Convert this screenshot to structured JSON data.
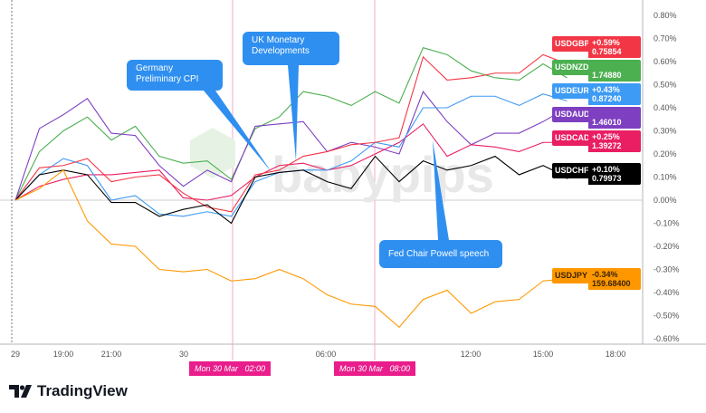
{
  "chart_data": {
    "type": "line",
    "x": [
      "Mar 29 17:00",
      "Mar 29 18:00",
      "Mar 29 19:00",
      "Mar 29 20:00",
      "Mar 29 21:00",
      "Mar 29 22:00",
      "Mar 29 23:00",
      "Mar 30 00:00",
      "Mar 30 01:00",
      "Mar 30 02:00",
      "Mar 30 03:00",
      "Mar 30 04:00",
      "Mar 30 05:00",
      "Mar 30 06:00",
      "Mar 30 07:00",
      "Mar 30 08:00",
      "Mar 30 09:00",
      "Mar 30 10:00",
      "Mar 30 11:00",
      "Mar 30 12:00",
      "Mar 30 13:00",
      "Mar 30 14:00",
      "Mar 30 15:00",
      "Mar 30 16:00"
    ],
    "ylim": [
      -0.62,
      0.84
    ],
    "grid": false,
    "yticks": [
      "0.80%",
      "0.70%",
      "0.60%",
      "0.50%",
      "0.40%",
      "0.30%",
      "0.20%",
      "0.10%",
      "0.00%",
      "-0.10%",
      "-0.20%",
      "-0.30%",
      "-0.40%",
      "-0.50%",
      "-0.60%"
    ],
    "ytick_values": [
      0.8,
      0.7,
      0.6,
      0.5,
      0.4,
      0.3,
      0.2,
      0.1,
      0,
      -0.1,
      -0.2,
      -0.3,
      -0.4,
      -0.5,
      -0.6
    ],
    "xticks": [
      "29",
      "19:00",
      "21:00",
      "30",
      "06:00",
      "12:00",
      "15:00",
      "18:00"
    ],
    "highlighted_x": [
      "Mon 30 Mar   02:00",
      "Mon 30 Mar   08:00"
    ],
    "series": [
      {
        "name": "USDNZD",
        "color": "#4caf50",
        "change": "",
        "value": "1.74880",
        "values": [
          0,
          0.21,
          0.3,
          0.36,
          0.26,
          0.32,
          0.19,
          0.16,
          0.17,
          0.09,
          0.31,
          0.36,
          0.47,
          0.45,
          0.41,
          0.47,
          0.42,
          0.66,
          0.63,
          0.56,
          0.53,
          0.52,
          0.59,
          0.53
        ]
      },
      {
        "name": "USDAUD",
        "color": "#7e3fc1",
        "change": "",
        "value": "1.46010",
        "values": [
          0,
          0.31,
          0.37,
          0.44,
          0.29,
          0.28,
          0.15,
          0.06,
          0.13,
          0.08,
          0.32,
          0.33,
          0.34,
          0.21,
          0.25,
          0.23,
          0.2,
          0.47,
          0.34,
          0.24,
          0.29,
          0.29,
          0.34,
          0.4
        ]
      },
      {
        "name": "USDCAD",
        "color": "#e91e63",
        "change": "+0.25%",
        "value": "1.39272",
        "values": [
          0,
          0.06,
          0.09,
          0.11,
          0.11,
          0.12,
          0.13,
          0.01,
          0,
          0.02,
          0.1,
          0.15,
          0.16,
          0.13,
          0.15,
          0.2,
          0.25,
          0.33,
          0.19,
          0.24,
          0.23,
          0.21,
          0.25,
          0.25
        ]
      },
      {
        "name": "USDEUR",
        "color": "#3d9bf5",
        "change": "+0.43%",
        "value": "0.87240",
        "values": [
          0,
          0.11,
          0.18,
          0.15,
          0,
          0.02,
          -0.06,
          -0.07,
          -0.05,
          -0.07,
          0.08,
          0.12,
          0.13,
          0.13,
          0.17,
          0.25,
          0.23,
          0.4,
          0.4,
          0.45,
          0.45,
          0.41,
          0.46,
          0.43
        ]
      },
      {
        "name": "USDGBP",
        "color": "#f23645",
        "change": "+0.59%",
        "value": "0.75854",
        "values": [
          0,
          0.14,
          0.15,
          0.18,
          0.08,
          0.1,
          0.11,
          0.03,
          -0.03,
          -0.05,
          0.11,
          0.13,
          0.19,
          0.21,
          0.24,
          0.25,
          0.27,
          0.62,
          0.52,
          0.53,
          0.55,
          0.55,
          0.63,
          0.59
        ]
      },
      {
        "name": "USDCHF",
        "color": "#000000",
        "change": "+0.10%",
        "value": "0.79973",
        "values": [
          0,
          0.11,
          0.13,
          0.11,
          -0.01,
          -0.01,
          -0.07,
          -0.04,
          -0.02,
          -0.1,
          0.1,
          0.12,
          0.13,
          0.08,
          0.05,
          0.19,
          0.08,
          0.17,
          0.13,
          0.15,
          0.19,
          0.11,
          0.15,
          0.1
        ]
      },
      {
        "name": "USDJPY",
        "color": "#ff9800",
        "change": "-0.34%",
        "value": "159.68400",
        "values": [
          0,
          0.05,
          0.13,
          -0.09,
          -0.19,
          -0.2,
          -0.3,
          -0.31,
          -0.3,
          -0.35,
          -0.34,
          -0.3,
          -0.34,
          -0.41,
          -0.45,
          -0.46,
          -0.55,
          -0.43,
          -0.39,
          -0.49,
          -0.44,
          -0.43,
          -0.35,
          -0.34
        ]
      }
    ],
    "annotations": [
      {
        "text": "Germany\nPreliminary CPI",
        "x": "Mar 30 04:00"
      },
      {
        "text": "UK Monetary\nDevelopments",
        "x": "Mar 30 05:00"
      },
      {
        "text": "Fed Chair Powell speech",
        "x": "Mar 30 10:00"
      }
    ]
  },
  "watermark": "babypips",
  "brand": "TradingView"
}
